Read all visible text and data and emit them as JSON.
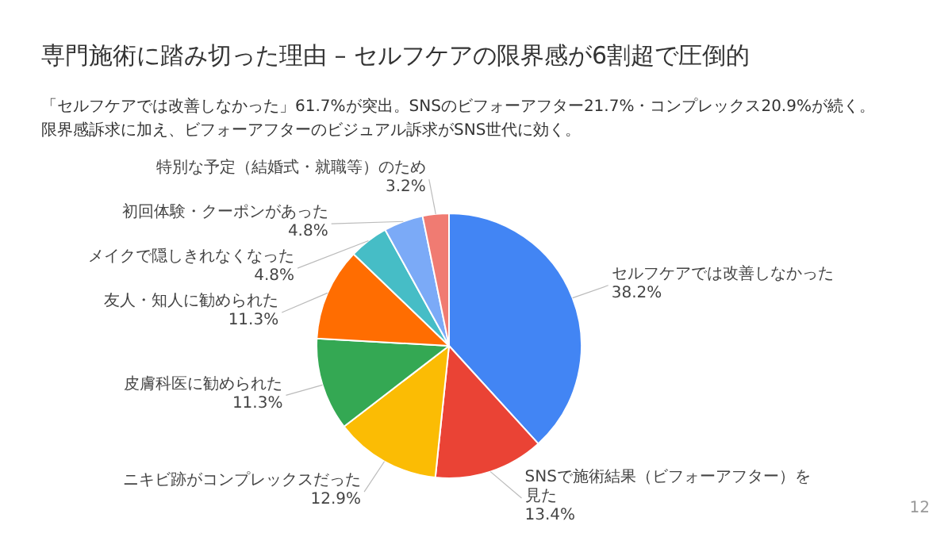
{
  "chart_data": {
    "type": "pie",
    "title": "専門施術に踏み切った理由 – セルフケアの限界感が6割超で圧倒的",
    "subtitle": "「セルフケアでは改善しなかった」61.7%が突出。SNSのビフォーアフター21.7%・コンプレックス20.9%が続く。限界感訴求に加え、ビフォーアフターのビジュアル訴求がSNS世代に効く。",
    "categories": [
      "セルフケアでは改善しなかった",
      "SNSで施術結果（ビフォーアフター）を見た",
      "ニキビ跡がコンプレックスだった",
      "皮膚科医に勧められた",
      "友人・知人に勧められた",
      "メイクで隠しきれなくなった",
      "初回体験・クーポンがあった",
      "特別な予定（結婚式・就職等）のため"
    ],
    "values": [
      38.2,
      13.4,
      12.9,
      11.3,
      11.3,
      4.8,
      4.8,
      3.2
    ],
    "value_labels": [
      "38.2%",
      "13.4%",
      "12.9%",
      "11.3%",
      "11.3%",
      "4.8%",
      "4.8%",
      "3.2%"
    ],
    "colors": [
      "#4285f4",
      "#ea4335",
      "#fbbc04",
      "#34a853",
      "#ff6d01",
      "#46bdc6",
      "#7baaf7",
      "#f07b72"
    ],
    "legend": false,
    "annotations": [
      "12"
    ]
  }
}
